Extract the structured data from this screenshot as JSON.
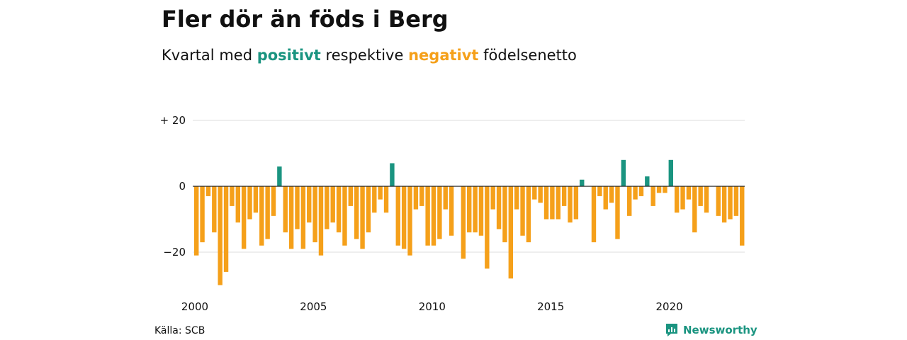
{
  "header": {
    "title": "Fler dör än föds i Berg",
    "subtitle_parts": [
      "Kvartal med",
      "positivt",
      "respektive",
      "negativt",
      "födelsenetto"
    ]
  },
  "footer": {
    "source": "Källa: SCB",
    "brand": "Newsworthy"
  },
  "colors": {
    "positive": "#1a9480",
    "negative": "#f5a01a",
    "grid": "#dddddd",
    "zero_line": "#222222"
  },
  "chart_data": {
    "type": "bar",
    "title": "Fler dör än föds i Berg",
    "subtitle": "Kvartal med positivt respektive negativt födelsenetto",
    "xlabel": "",
    "ylabel": "",
    "ylim": [
      -30,
      20
    ],
    "yticks": [
      {
        "value": 20,
        "label": "+ 20"
      },
      {
        "value": 0,
        "label": "0"
      },
      {
        "value": -20,
        "label": "−20"
      }
    ],
    "xticks": [
      {
        "value": 2000,
        "label": "2000"
      },
      {
        "value": 2005,
        "label": "2005"
      },
      {
        "value": 2010,
        "label": "2010"
      },
      {
        "value": 2015,
        "label": "2015"
      },
      {
        "value": 2020,
        "label": "2020"
      }
    ],
    "x_start": "2000 Q1",
    "quarters_per_year": 4,
    "grid": true,
    "values": [
      -21,
      -17,
      -3,
      -14,
      -30,
      -26,
      -6,
      -11,
      -19,
      -10,
      -8,
      -18,
      -16,
      -9,
      6,
      -14,
      -19,
      -13,
      -19,
      -11,
      -17,
      -21,
      -13,
      -11,
      -14,
      -18,
      -6,
      -16,
      -19,
      -14,
      -8,
      -4,
      -8,
      7,
      -18,
      -19,
      -21,
      -7,
      -6,
      -18,
      -18,
      -16,
      -7,
      -15,
      0,
      -22,
      -14,
      -14,
      -15,
      -25,
      -7,
      -13,
      -17,
      -28,
      -7,
      -15,
      -17,
      -4,
      -5,
      -10,
      -10,
      -10,
      -6,
      -11,
      -10,
      2,
      0,
      -17,
      -3,
      -7,
      -5,
      -16,
      8,
      -9,
      -4,
      -3,
      3,
      -6,
      -2,
      -2,
      8,
      -8,
      -7,
      -4,
      -14,
      -6,
      -8,
      0,
      -9,
      -11,
      -10,
      -9,
      -18
    ]
  }
}
